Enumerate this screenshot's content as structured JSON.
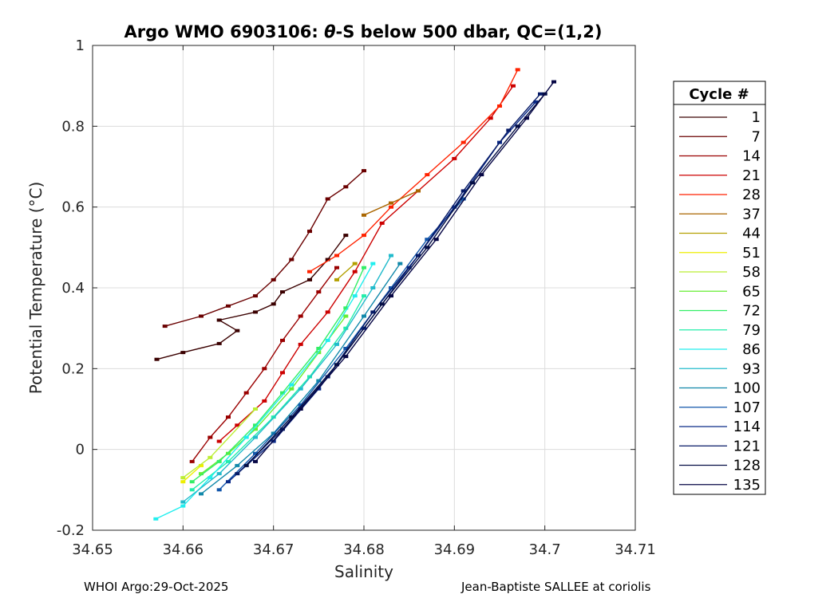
{
  "chart_data": {
    "type": "line",
    "title_prefix": "Argo WMO 6903106: ",
    "title_theta": "θ",
    "title_suffix": "-S below 500 dbar,  QC=(1,2)",
    "xlabel": "Salinity",
    "ylabel": "Potential Temperature (°C)",
    "xlim": [
      34.65,
      34.71
    ],
    "ylim": [
      -0.2,
      1.0
    ],
    "xticks": [
      "34.65",
      "34.66",
      "34.67",
      "34.68",
      "34.69",
      "34.7",
      "34.71"
    ],
    "yticks": [
      "-0.2",
      "0",
      "0.2",
      "0.4",
      "0.6",
      "0.8",
      "1"
    ],
    "grid": true,
    "legend": {
      "title": "Cycle #",
      "placement": "outside-right",
      "entries": [
        {
          "label": "1",
          "color": "#3a0000"
        },
        {
          "label": "7",
          "color": "#6a0000"
        },
        {
          "label": "14",
          "color": "#9a0000"
        },
        {
          "label": "21",
          "color": "#cc0000"
        },
        {
          "label": "28",
          "color": "#ff2200"
        },
        {
          "label": "37",
          "color": "#aa6600"
        },
        {
          "label": "44",
          "color": "#b3a000"
        },
        {
          "label": "51",
          "color": "#eeee00"
        },
        {
          "label": "58",
          "color": "#bbee33"
        },
        {
          "label": "65",
          "color": "#66ee33"
        },
        {
          "label": "72",
          "color": "#33ee66"
        },
        {
          "label": "79",
          "color": "#22eeaa"
        },
        {
          "label": "86",
          "color": "#22eeee"
        },
        {
          "label": "93",
          "color": "#22bbcc"
        },
        {
          "label": "100",
          "color": "#1188aa"
        },
        {
          "label": "107",
          "color": "#1155aa"
        },
        {
          "label": "114",
          "color": "#0a2a88"
        },
        {
          "label": "121",
          "color": "#061a66"
        },
        {
          "label": "128",
          "color": "#040e44"
        },
        {
          "label": "135",
          "color": "#060644"
        }
      ]
    },
    "series": [
      {
        "label": "1",
        "color": "#3a0000",
        "points": [
          [
            34.6571,
            0.223
          ],
          [
            34.66,
            0.24
          ],
          [
            34.664,
            0.262
          ],
          [
            34.666,
            0.294
          ],
          [
            34.664,
            0.32
          ],
          [
            34.668,
            0.34
          ],
          [
            34.67,
            0.36
          ],
          [
            34.671,
            0.39
          ],
          [
            34.674,
            0.42
          ],
          [
            34.676,
            0.47
          ],
          [
            34.678,
            0.53
          ]
        ]
      },
      {
        "label": "7",
        "color": "#6a0000",
        "points": [
          [
            34.658,
            0.305
          ],
          [
            34.662,
            0.33
          ],
          [
            34.665,
            0.355
          ],
          [
            34.668,
            0.38
          ],
          [
            34.67,
            0.42
          ],
          [
            34.672,
            0.47
          ],
          [
            34.674,
            0.54
          ],
          [
            34.676,
            0.62
          ],
          [
            34.678,
            0.65
          ],
          [
            34.68,
            0.69
          ]
        ]
      },
      {
        "label": "14",
        "color": "#9a0000",
        "points": [
          [
            34.661,
            -0.03
          ],
          [
            34.663,
            0.03
          ],
          [
            34.665,
            0.08
          ],
          [
            34.667,
            0.14
          ],
          [
            34.669,
            0.2
          ],
          [
            34.671,
            0.27
          ],
          [
            34.673,
            0.33
          ],
          [
            34.675,
            0.39
          ],
          [
            34.677,
            0.45
          ]
        ]
      },
      {
        "label": "21",
        "color": "#cc0000",
        "points": [
          [
            34.664,
            0.02
          ],
          [
            34.666,
            0.06
          ],
          [
            34.669,
            0.12
          ],
          [
            34.671,
            0.19
          ],
          [
            34.673,
            0.26
          ],
          [
            34.676,
            0.34
          ],
          [
            34.679,
            0.44
          ],
          [
            34.682,
            0.56
          ],
          [
            34.686,
            0.64
          ],
          [
            34.69,
            0.72
          ],
          [
            34.694,
            0.82
          ],
          [
            34.6965,
            0.9
          ]
        ]
      },
      {
        "label": "28",
        "color": "#ff2200",
        "points": [
          [
            34.674,
            0.44
          ],
          [
            34.677,
            0.48
          ],
          [
            34.68,
            0.53
          ],
          [
            34.683,
            0.6
          ],
          [
            34.687,
            0.68
          ],
          [
            34.691,
            0.76
          ],
          [
            34.695,
            0.85
          ],
          [
            34.697,
            0.94
          ]
        ]
      },
      {
        "label": "37",
        "color": "#aa6600",
        "points": [
          [
            34.68,
            0.58
          ],
          [
            34.683,
            0.61
          ],
          [
            34.686,
            0.64
          ]
        ]
      },
      {
        "label": "44",
        "color": "#b3a000",
        "points": [
          [
            34.677,
            0.42
          ],
          [
            34.679,
            0.46
          ]
        ]
      },
      {
        "label": "51",
        "color": "#eeee00",
        "points": [
          [
            34.66,
            -0.08
          ],
          [
            34.662,
            -0.04
          ]
        ]
      },
      {
        "label": "58",
        "color": "#bbee33",
        "points": [
          [
            34.66,
            -0.07
          ],
          [
            34.663,
            -0.02
          ],
          [
            34.668,
            0.1
          ]
        ]
      },
      {
        "label": "65",
        "color": "#66ee33",
        "points": [
          [
            34.662,
            -0.06
          ],
          [
            34.665,
            -0.01
          ],
          [
            34.668,
            0.05
          ],
          [
            34.672,
            0.15
          ],
          [
            34.675,
            0.24
          ],
          [
            34.678,
            0.33
          ]
        ]
      },
      {
        "label": "72",
        "color": "#33ee66",
        "points": [
          [
            34.661,
            -0.08
          ],
          [
            34.664,
            -0.03
          ],
          [
            34.668,
            0.06
          ],
          [
            34.671,
            0.14
          ],
          [
            34.675,
            0.25
          ],
          [
            34.678,
            0.35
          ],
          [
            34.68,
            0.45
          ]
        ]
      },
      {
        "label": "79",
        "color": "#22eeaa",
        "points": [
          [
            34.661,
            -0.1
          ],
          [
            34.665,
            -0.03
          ],
          [
            34.67,
            0.08
          ],
          [
            34.674,
            0.18
          ],
          [
            34.678,
            0.3
          ],
          [
            34.68,
            0.38
          ]
        ]
      },
      {
        "label": "86",
        "color": "#22eeee",
        "points": [
          [
            34.657,
            -0.172
          ],
          [
            34.66,
            -0.14
          ],
          [
            34.663,
            -0.07
          ],
          [
            34.667,
            0.03
          ],
          [
            34.672,
            0.16
          ],
          [
            34.676,
            0.27
          ],
          [
            34.679,
            0.38
          ],
          [
            34.681,
            0.46
          ]
        ]
      },
      {
        "label": "93",
        "color": "#22bbcc",
        "points": [
          [
            34.66,
            -0.13
          ],
          [
            34.664,
            -0.06
          ],
          [
            34.668,
            0.03
          ],
          [
            34.673,
            0.15
          ],
          [
            34.677,
            0.26
          ],
          [
            34.681,
            0.4
          ],
          [
            34.683,
            0.48
          ]
        ]
      },
      {
        "label": "100",
        "color": "#1188aa",
        "points": [
          [
            34.662,
            -0.11
          ],
          [
            34.666,
            -0.04
          ],
          [
            34.67,
            0.04
          ],
          [
            34.675,
            0.17
          ],
          [
            34.68,
            0.33
          ],
          [
            34.684,
            0.46
          ]
        ]
      },
      {
        "label": "107",
        "color": "#1155aa",
        "points": [
          [
            34.664,
            -0.1
          ],
          [
            34.668,
            -0.01
          ],
          [
            34.673,
            0.11
          ],
          [
            34.678,
            0.25
          ],
          [
            34.683,
            0.4
          ],
          [
            34.687,
            0.52
          ],
          [
            34.691,
            0.62
          ]
        ]
      },
      {
        "label": "114",
        "color": "#0a2a88",
        "points": [
          [
            34.665,
            -0.08
          ],
          [
            34.67,
            0.02
          ],
          [
            34.675,
            0.15
          ],
          [
            34.68,
            0.3
          ],
          [
            34.685,
            0.45
          ],
          [
            34.69,
            0.6
          ],
          [
            34.695,
            0.76
          ],
          [
            34.699,
            0.86
          ]
        ]
      },
      {
        "label": "121",
        "color": "#061a66",
        "points": [
          [
            34.666,
            -0.06
          ],
          [
            34.671,
            0.05
          ],
          [
            34.676,
            0.18
          ],
          [
            34.681,
            0.34
          ],
          [
            34.686,
            0.48
          ],
          [
            34.691,
            0.64
          ],
          [
            34.696,
            0.79
          ],
          [
            34.6995,
            0.88
          ]
        ]
      },
      {
        "label": "128",
        "color": "#040e44",
        "points": [
          [
            34.667,
            -0.04
          ],
          [
            34.672,
            0.08
          ],
          [
            34.677,
            0.21
          ],
          [
            34.682,
            0.36
          ],
          [
            34.687,
            0.5
          ],
          [
            34.692,
            0.66
          ],
          [
            34.697,
            0.8
          ],
          [
            34.7,
            0.88
          ]
        ]
      },
      {
        "label": "135",
        "color": "#060644",
        "points": [
          [
            34.668,
            -0.03
          ],
          [
            34.673,
            0.1
          ],
          [
            34.678,
            0.23
          ],
          [
            34.683,
            0.38
          ],
          [
            34.688,
            0.52
          ],
          [
            34.693,
            0.68
          ],
          [
            34.698,
            0.82
          ],
          [
            34.701,
            0.91
          ]
        ]
      }
    ]
  },
  "footer": {
    "left": "WHOI Argo:29-Oct-2025",
    "right": "Jean-Baptiste SALLEE at coriolis"
  }
}
